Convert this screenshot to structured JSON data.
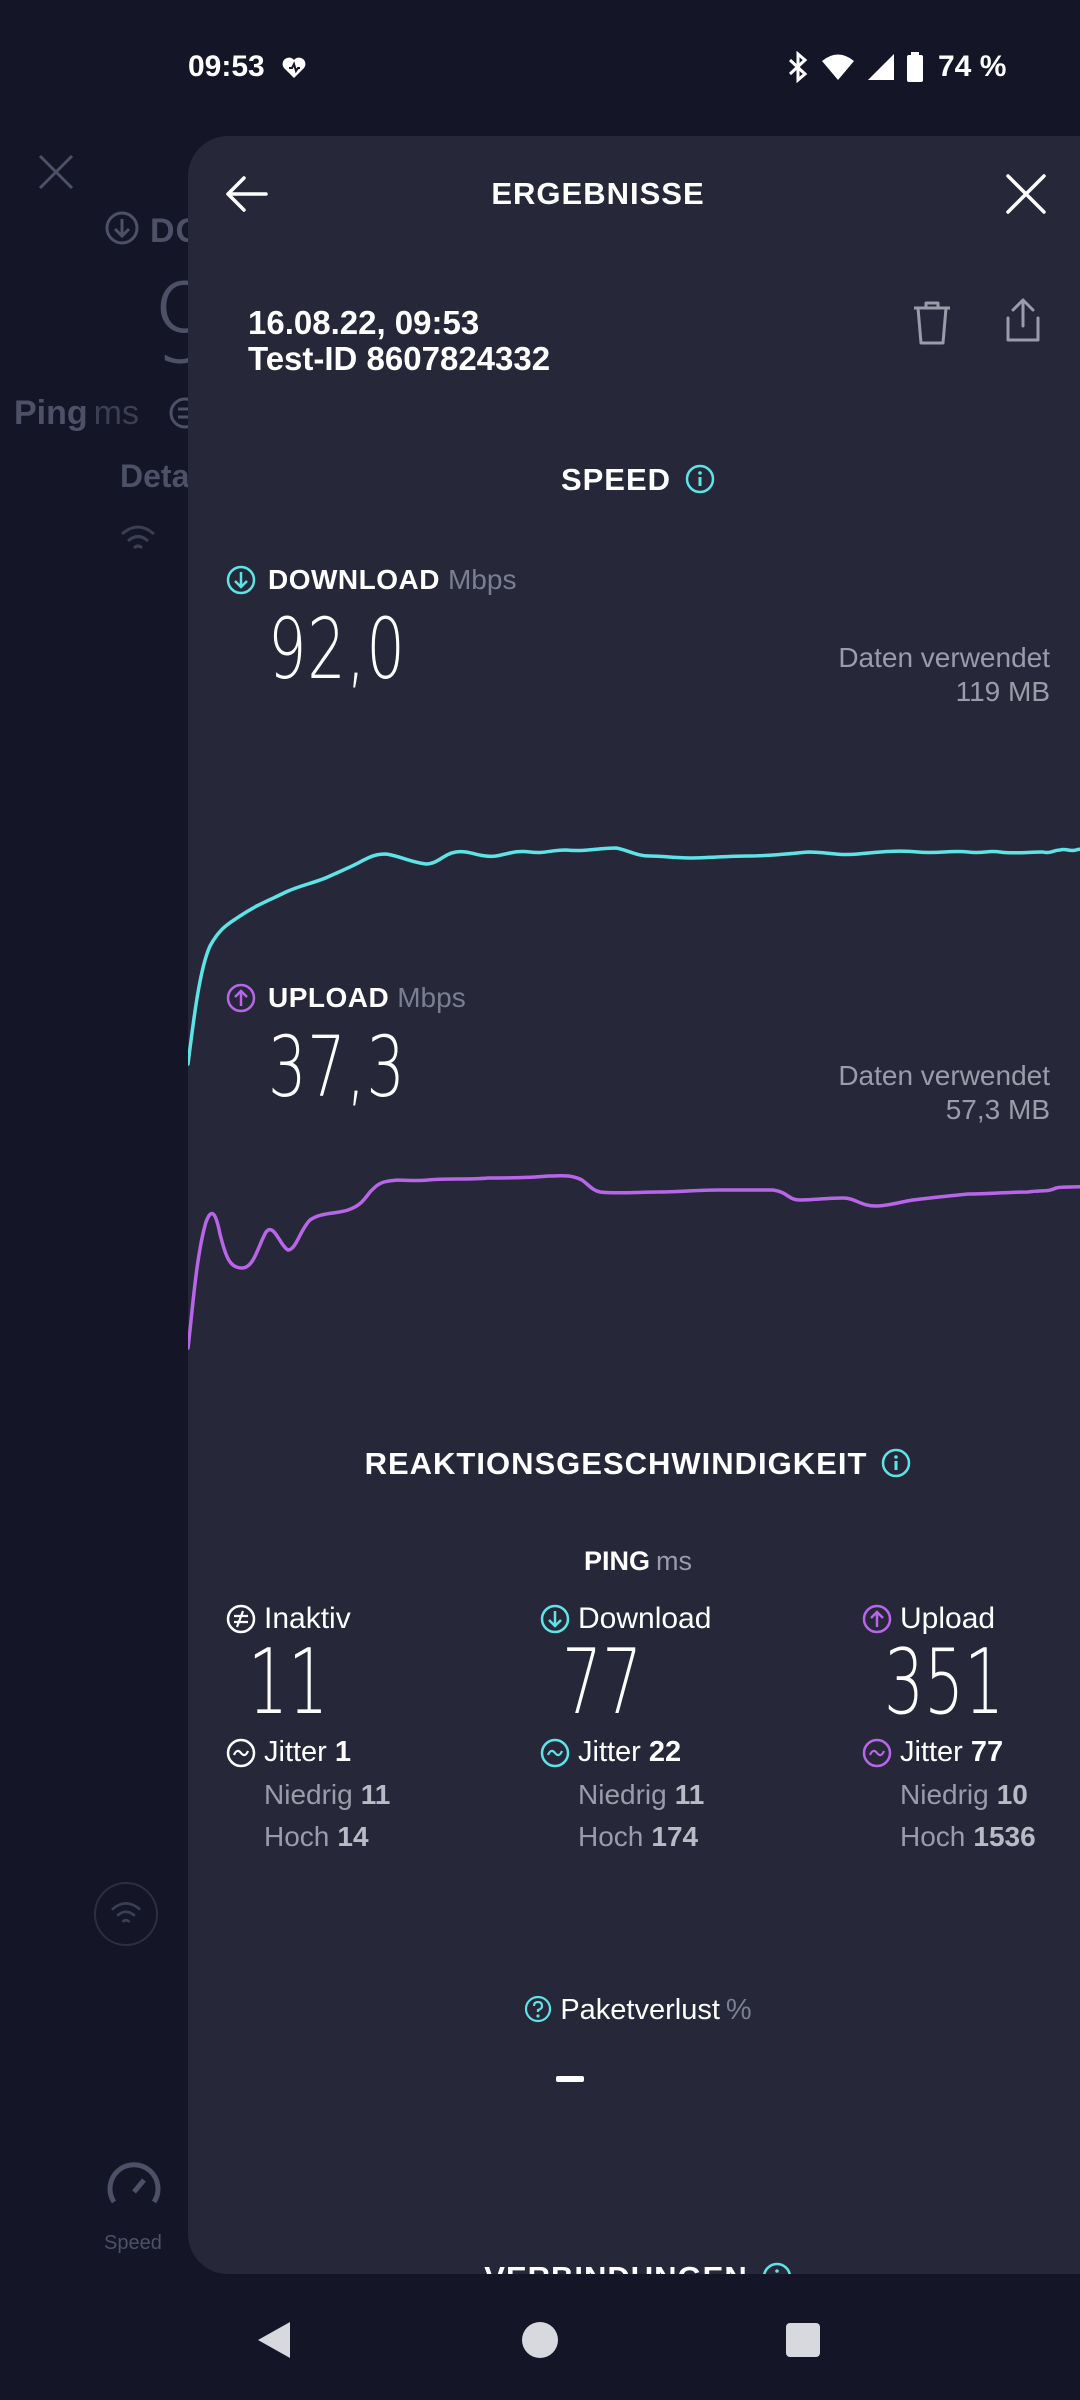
{
  "status_bar": {
    "time": "09:53",
    "battery_text": "74 %",
    "icons": [
      "heart-icon",
      "bluetooth-icon",
      "wifi-icon",
      "signal-icon",
      "battery-icon"
    ]
  },
  "background_app": {
    "download_label": "DO",
    "big_value": "9",
    "ping_label": "Ping",
    "ping_unit": "ms",
    "details_label": "Deta",
    "speed_label": "Speed"
  },
  "header": {
    "title": "ERGEBNISSE"
  },
  "meta": {
    "datetime": "16.08.22, 09:53",
    "test_id": "Test-ID 8607824332"
  },
  "speed": {
    "title": "SPEED",
    "download": {
      "label": "DOWNLOAD",
      "unit": "Mbps",
      "value": "92,0",
      "data_used_label": "Daten verwendet",
      "data_used_value": "119 MB",
      "color": "#5ee3e6"
    },
    "upload": {
      "label": "UPLOAD",
      "unit": "Mbps",
      "value": "37,3",
      "data_used_label": "Daten verwendet",
      "data_used_value": "57,3 MB",
      "color": "#b866e8"
    }
  },
  "responsiveness": {
    "title": "REAKTIONSGESCHWINDIGKEIT",
    "ping_label": "PING",
    "ping_unit": "ms",
    "columns": [
      {
        "label": "Inaktiv",
        "value": "11",
        "jitter_label": "Jitter",
        "jitter": "1",
        "low_label": "Niedrig",
        "low": "11",
        "high_label": "Hoch",
        "high": "14"
      },
      {
        "label": "Download",
        "value": "77",
        "jitter_label": "Jitter",
        "jitter": "22",
        "low_label": "Niedrig",
        "low": "11",
        "high_label": "Hoch",
        "high": "174"
      },
      {
        "label": "Upload",
        "value": "351",
        "jitter_label": "Jitter",
        "jitter": "77",
        "low_label": "Niedrig",
        "low": "10",
        "high_label": "Hoch",
        "high": "1536"
      }
    ],
    "packet_loss_label": "Paketverlust",
    "packet_loss_unit": "%"
  },
  "connections": {
    "title": "VERBINDUNGEN"
  }
}
